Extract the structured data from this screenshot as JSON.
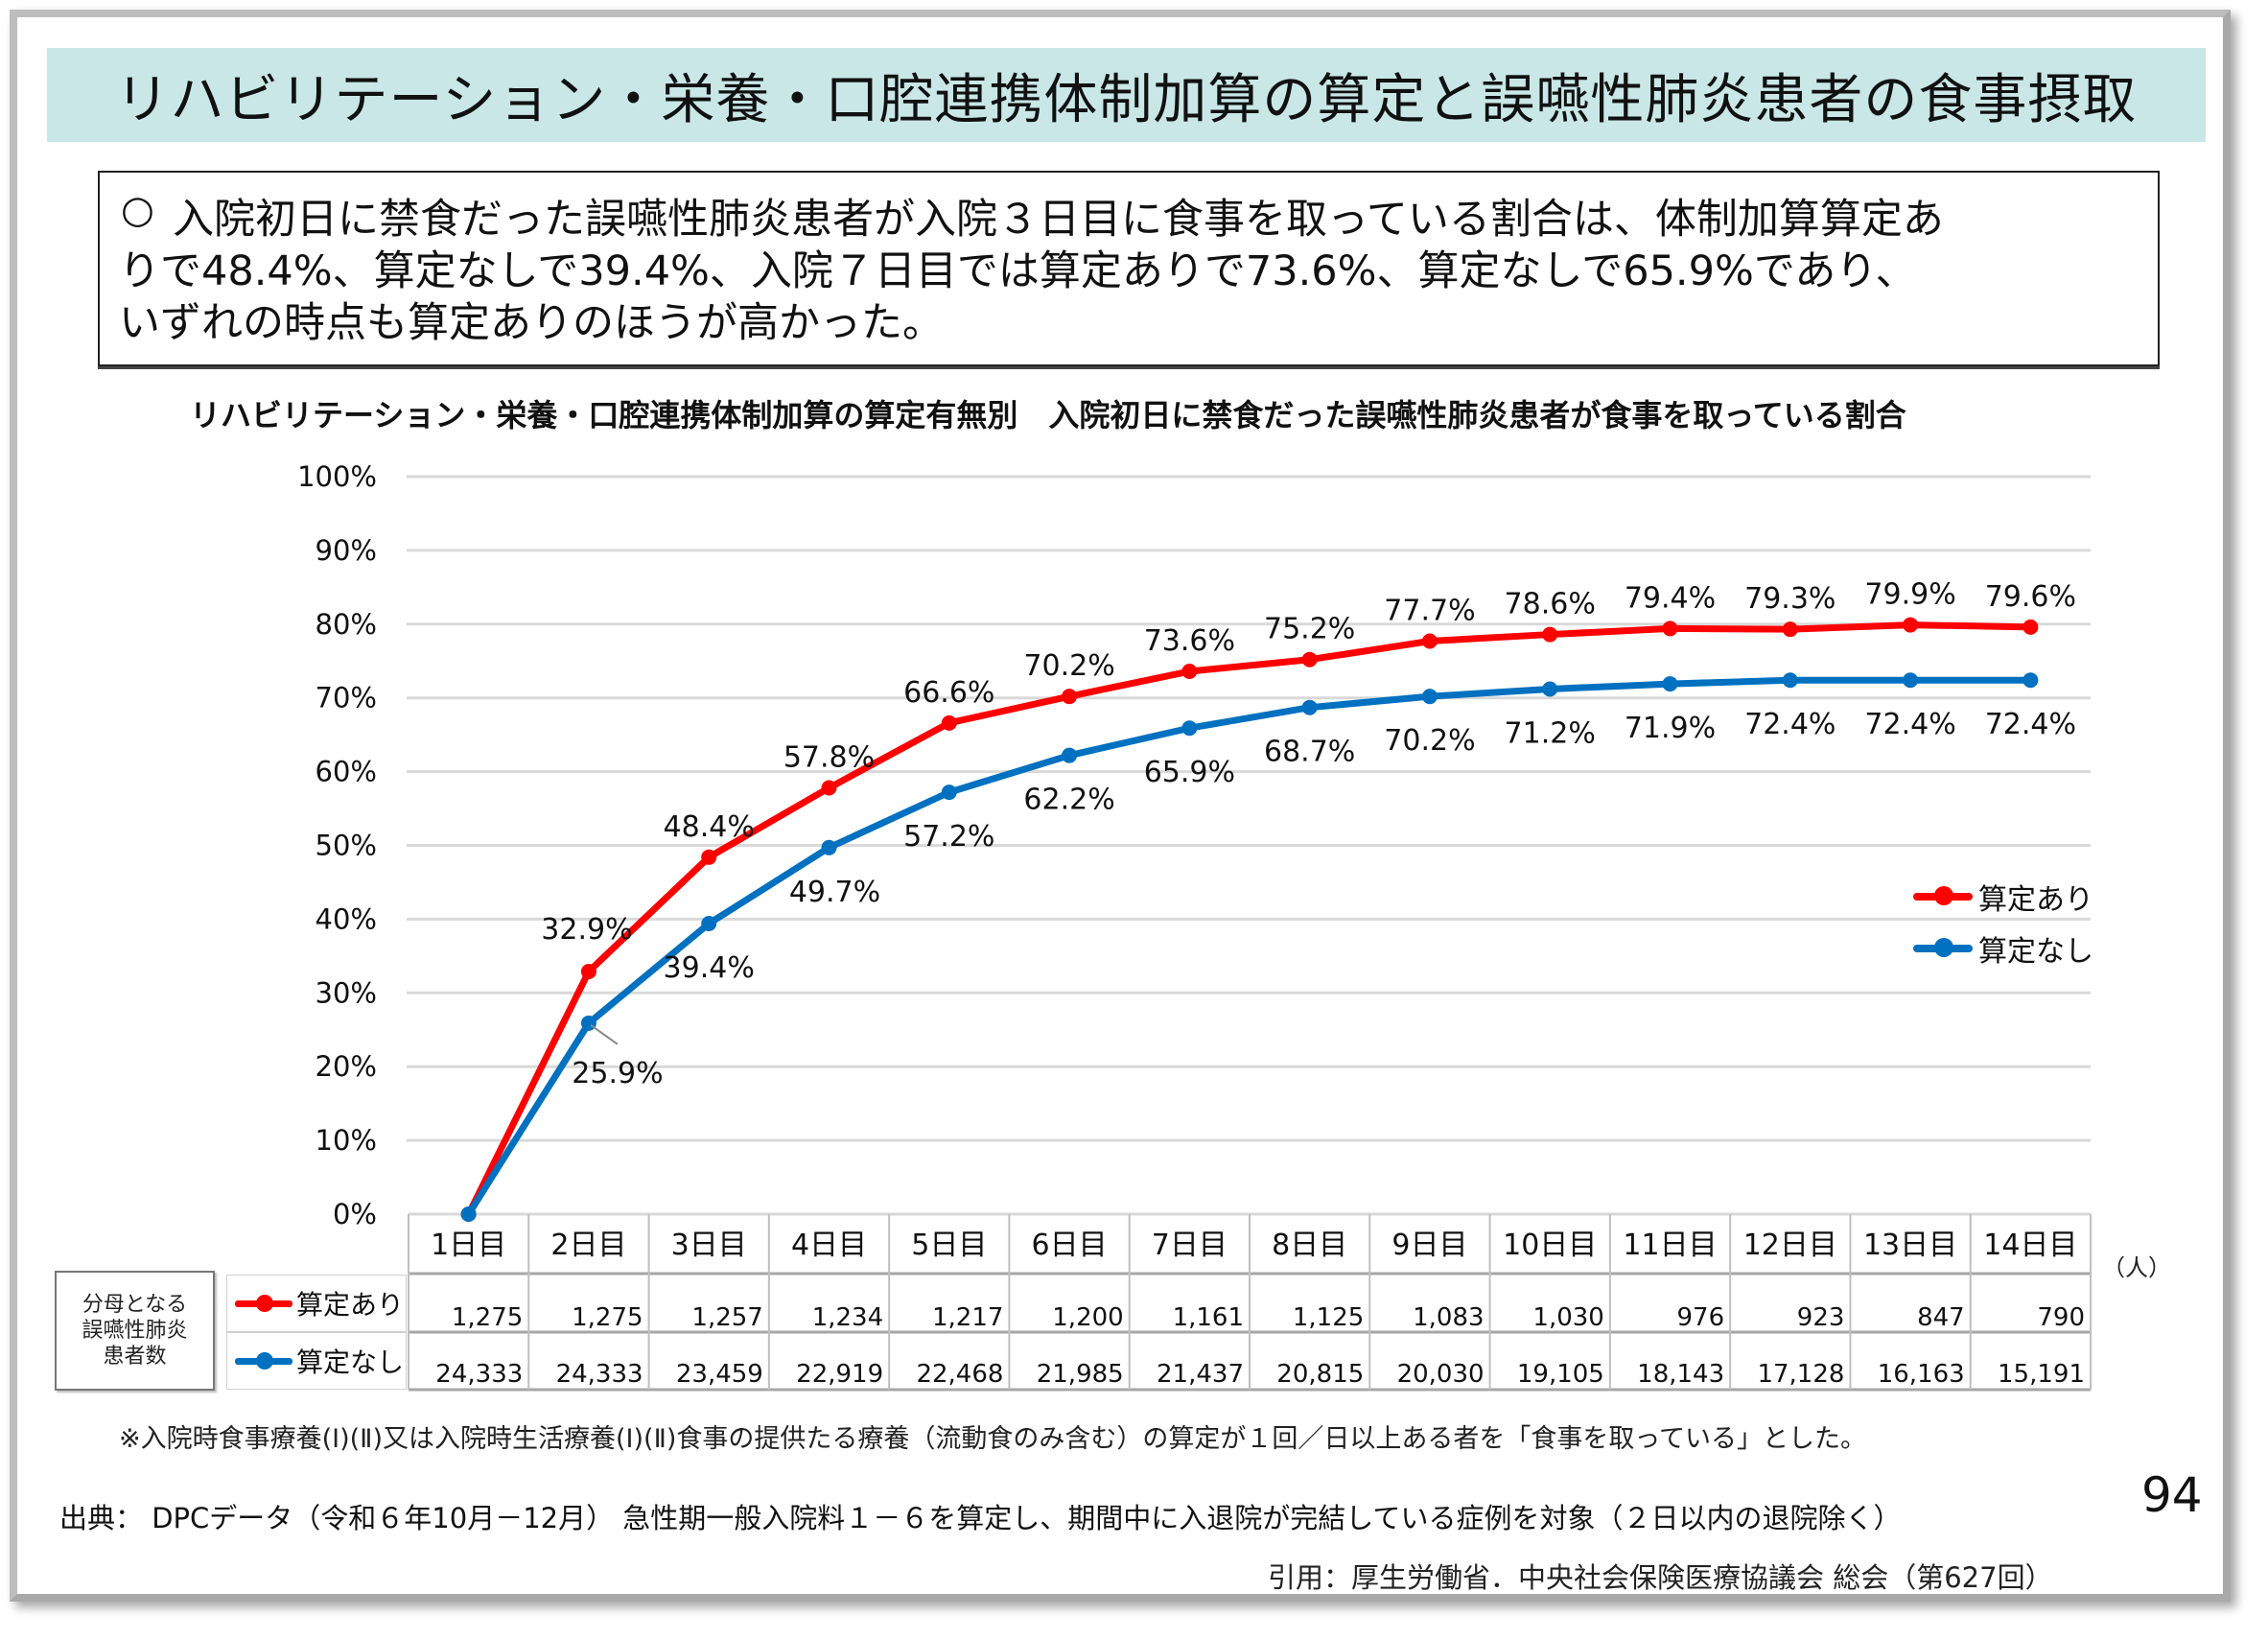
{
  "page": {
    "title": "リハビリテーション・栄養・口腔連携体制加算の算定と誤嚥性肺炎患者の食事摂取",
    "summary_bullet": "○",
    "summary_lines": [
      "入院初日に禁食だった誤嚥性肺炎患者が入院３日目に食事を取っている割合は、体制加算算定あ",
      "りで48.4%、算定なしで39.4%、入院７日目では算定ありで73.6%、算定なしで65.9%であり、",
      "いずれの時点も算定ありのほうが高かった。"
    ],
    "page_number": "94",
    "footnote": "※入院時食事療養(Ⅰ)(Ⅱ)又は入院時生活療養(Ⅰ)(Ⅱ)食事の提供たる療養（流動食のみ含む）の算定が１回／日以上ある者を「食事を取っている」とした。",
    "source": "出典： DPCデータ（令和６年10月－12月） 急性期一般入院料１－６を算定し、期間中に入退院が完結している症例を対象（２日以内の退院除く）",
    "citation": "引用：厚生労働省．中央社会保険医療協議会 総会（第627回）"
  },
  "colors": {
    "title_band": "#c9e7e7",
    "series_with": "#ff0000",
    "series_without": "#0070c0",
    "gridline": "#d9d9d9"
  },
  "chart_data": {
    "type": "line",
    "title": "リハビリテーション・栄養・口腔連携体制加算の算定有無別　入院初日に禁食だった誤嚥性肺炎患者が食事を取っている割合",
    "xlabel": "",
    "ylabel": "",
    "ylim": [
      0,
      100
    ],
    "yticks": [
      0,
      10,
      20,
      30,
      40,
      50,
      60,
      70,
      80,
      90,
      100
    ],
    "ytick_labels": [
      "0%",
      "10%",
      "20%",
      "30%",
      "40%",
      "50%",
      "60%",
      "70%",
      "80%",
      "90%",
      "100%"
    ],
    "grid": true,
    "legend_position": "right",
    "categories": [
      "1日目",
      "2日目",
      "3日目",
      "4日目",
      "5日目",
      "6日目",
      "7日目",
      "8日目",
      "9日目",
      "10日目",
      "11日目",
      "12日目",
      "13日目",
      "14日目"
    ],
    "series": [
      {
        "name": "算定あり",
        "color": "#ff0000",
        "values": [
          0,
          32.9,
          48.4,
          57.8,
          66.6,
          70.2,
          73.6,
          75.2,
          77.7,
          78.6,
          79.4,
          79.3,
          79.9,
          79.6
        ],
        "labels": [
          "",
          "32.9%",
          "48.4%",
          "57.8%",
          "66.6%",
          "70.2%",
          "73.6%",
          "75.2%",
          "77.7%",
          "78.6%",
          "79.4%",
          "79.3%",
          "79.9%",
          "79.6%"
        ],
        "label_position": "above"
      },
      {
        "name": "算定なし",
        "color": "#0070c0",
        "values": [
          0,
          25.9,
          39.4,
          49.7,
          57.2,
          62.2,
          65.9,
          68.7,
          70.2,
          71.2,
          71.9,
          72.4,
          72.4,
          72.4
        ],
        "labels": [
          "",
          "25.9%",
          "39.4%",
          "49.7%",
          "57.2%",
          "62.2%",
          "65.9%",
          "68.7%",
          "70.2%",
          "71.2%",
          "71.9%",
          "72.4%",
          "72.4%",
          "72.4%"
        ],
        "label_position": "below"
      }
    ],
    "data_table": {
      "row_group_label": "分母となる誤嚥性肺炎患者数",
      "row_group_label_lines": [
        "分母となる",
        "誤嚥性肺炎",
        "患者数"
      ],
      "unit": "（人）",
      "rows": [
        {
          "name": "算定あり",
          "values": [
            "1,275",
            "1,275",
            "1,257",
            "1,234",
            "1,217",
            "1,200",
            "1,161",
            "1,125",
            "1,083",
            "1,030",
            "976",
            "923",
            "847",
            "790"
          ]
        },
        {
          "name": "算定なし",
          "values": [
            "24,333",
            "24,333",
            "23,459",
            "22,919",
            "22,468",
            "21,985",
            "21,437",
            "20,815",
            "20,030",
            "19,105",
            "18,143",
            "17,128",
            "16,163",
            "15,191"
          ]
        }
      ]
    }
  }
}
